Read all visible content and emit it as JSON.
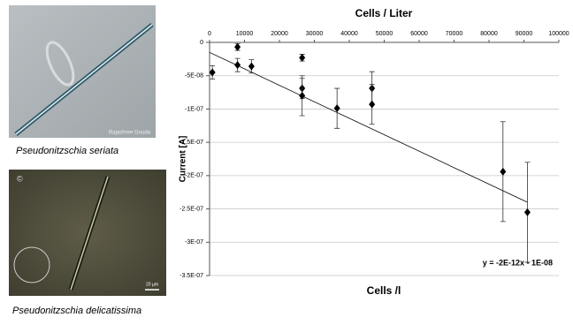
{
  "panels": [
    {
      "caption": "Pseudonitzschia seriata",
      "credit": "Rajashree Gouda"
    },
    {
      "caption": "Pseudonitzschia delicatissima",
      "copyright": "©",
      "scale_bar": "20 µm"
    }
  ],
  "chart_data": {
    "type": "scatter",
    "title": "Cells / Liter",
    "x_label": "Cells /l",
    "y_label": "Current [A]",
    "xlim": [
      0,
      100000
    ],
    "xticks": [
      0,
      10000,
      20000,
      30000,
      40000,
      50000,
      60000,
      70000,
      80000,
      90000,
      100000
    ],
    "ylim": [
      -3.5e-07,
      0
    ],
    "yticks": [
      {
        "value": 0,
        "label": "0"
      },
      {
        "value": -5e-08,
        "label": "-5E-08"
      },
      {
        "value": -1e-07,
        "label": "-1E-07"
      },
      {
        "value": -1.5e-07,
        "label": "-1.5E-07"
      },
      {
        "value": -2e-07,
        "label": "-2E-07"
      },
      {
        "value": -2.5e-07,
        "label": "-2.5E-07"
      },
      {
        "value": -3e-07,
        "label": "-3E-07"
      },
      {
        "value": -3.5e-07,
        "label": "-3.5E-07"
      }
    ],
    "grid": true,
    "series": [
      {
        "color": "#000000",
        "x": [
          800,
          8000,
          8000,
          12000,
          26500,
          26500,
          26500,
          36500,
          46500,
          46500,
          84000,
          91000
        ],
        "values": [
          -4.5e-08,
          -7e-09,
          -3.4e-08,
          -3.6e-08,
          -2.3e-08,
          -6.9e-08,
          -8e-08,
          -9.9e-08,
          -6.9e-08,
          -9.3e-08,
          -1.94e-07,
          -2.55e-07
        ],
        "errors": [
          1e-08,
          5e-09,
          1e-08,
          1e-08,
          5e-09,
          1.5e-08,
          3e-08,
          3e-08,
          2.5e-08,
          3e-08,
          7.5e-08,
          7.5e-08
        ]
      }
    ],
    "trendline": {
      "color": "#000000",
      "x": [
        0,
        91000
      ],
      "values": [
        -1.5e-08,
        -2.4e-07
      ],
      "equation": "y = -2E-12x - 1E-08"
    }
  }
}
